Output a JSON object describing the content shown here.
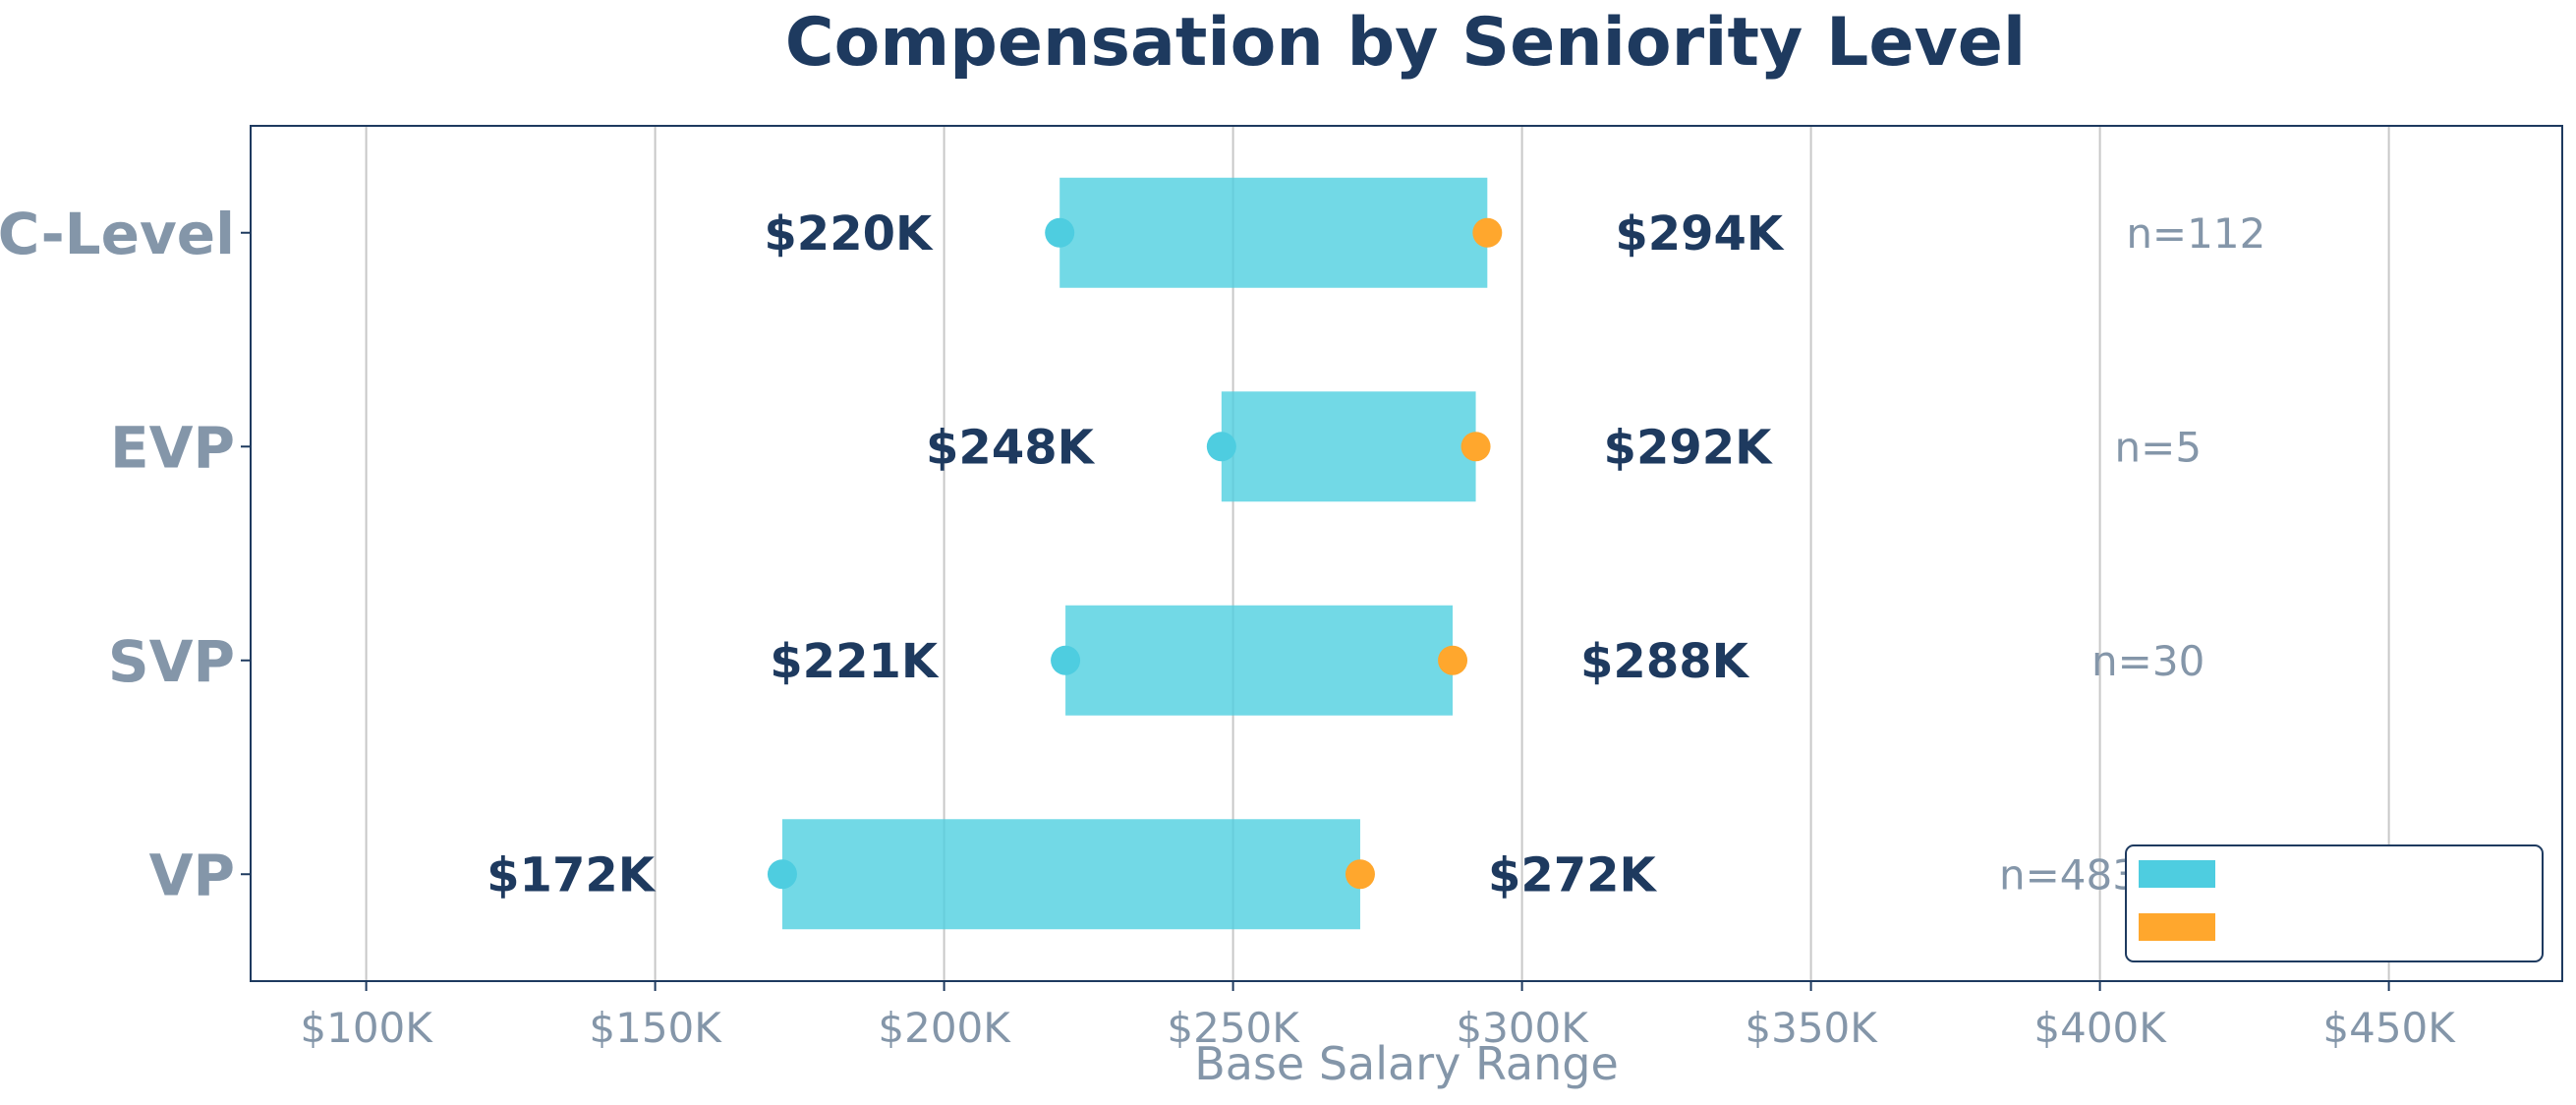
{
  "chart_data": {
    "type": "bar",
    "title": "Compensation by Seniority Level",
    "xlabel": "Base Salary Range",
    "ylabel": "",
    "xlim": [
      80,
      480
    ],
    "x_ticks": [
      100,
      150,
      200,
      250,
      300,
      350,
      400,
      450
    ],
    "x_tick_labels": [
      "$100K",
      "$150K",
      "$200K",
      "$250K",
      "$300K",
      "$350K",
      "$400K",
      "$450K"
    ],
    "grid": "vertical",
    "legend_position": "bottom-right",
    "categories": [
      "C-Level",
      "EVP",
      "SVP",
      "VP"
    ],
    "series": [
      {
        "values": [
          220,
          248,
          221,
          172
        ],
        "labels": [
          "$220K",
          "$248K",
          "$221K",
          "$172K"
        ]
      },
      {
        "values": [
          294,
          292,
          288,
          272
        ],
        "labels": [
          "$294K",
          "$292K",
          "$288K",
          "$272K"
        ]
      }
    ],
    "counts": [
      "n=112",
      "n=5",
      "n=30",
      "n=483"
    ],
    "colors": {
      "range_bar": "#4fcfe0",
      "min_marker": "#4ecde0",
      "max_marker": "#ffa72d",
      "title": "#1e3a5f",
      "value_label": "#1e3a5f",
      "muted_text": "#8496a9",
      "grid": "#c8c8c8",
      "axes": "#1e3a5f"
    }
  }
}
